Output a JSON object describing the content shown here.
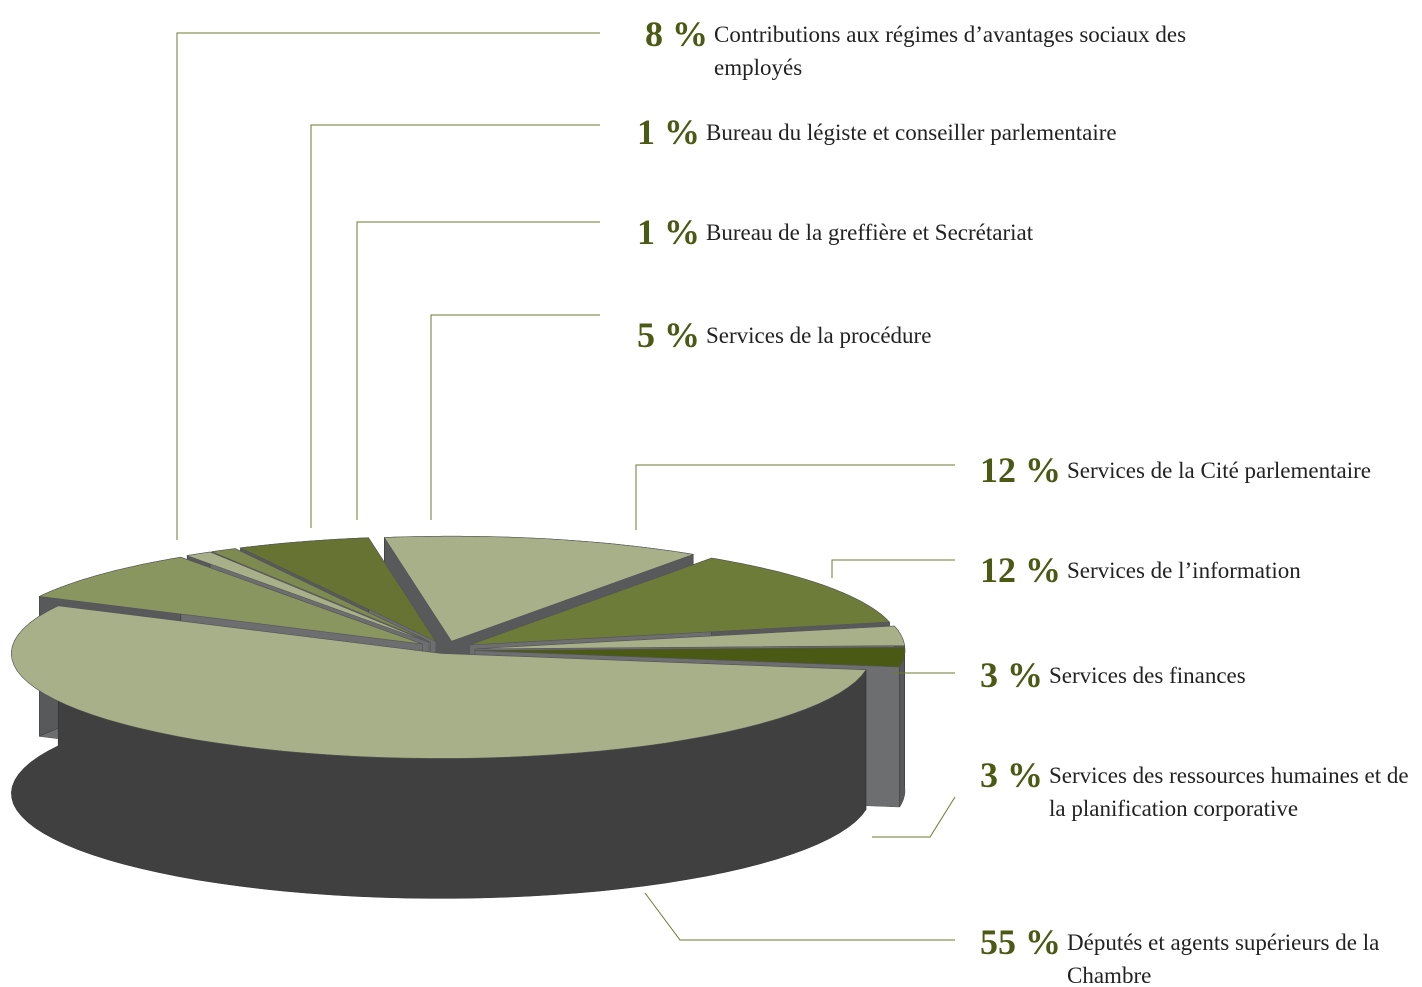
{
  "chart_data": {
    "type": "pie",
    "categories": [
      "Contributions aux régimes d’avantages sociaux des employés",
      "Bureau du légiste et conseiller parlementaire",
      "Bureau de la greffière et Secrétariat",
      "Services de la procédure",
      "Services de la Cité parlementaire",
      "Services de l’information",
      "Services des finances",
      "Services des ressources humaines et de la planification corporative",
      "Députés et agents supérieurs de la Chambre"
    ],
    "values": [
      8,
      1,
      1,
      5,
      12,
      12,
      3,
      3,
      55
    ],
    "value_labels": [
      "8 %",
      "1 %",
      "1 %",
      "5 %",
      "12 %",
      "12 %",
      "3 %",
      "3 %",
      "55 %"
    ],
    "colors": [
      "#8a9660",
      "#a8b08a",
      "#7d8a50",
      "#667333",
      "#a8b08a",
      "#6e7c3a",
      "#a8b08a",
      "#4a5a14",
      "#a8b08a"
    ]
  }
}
